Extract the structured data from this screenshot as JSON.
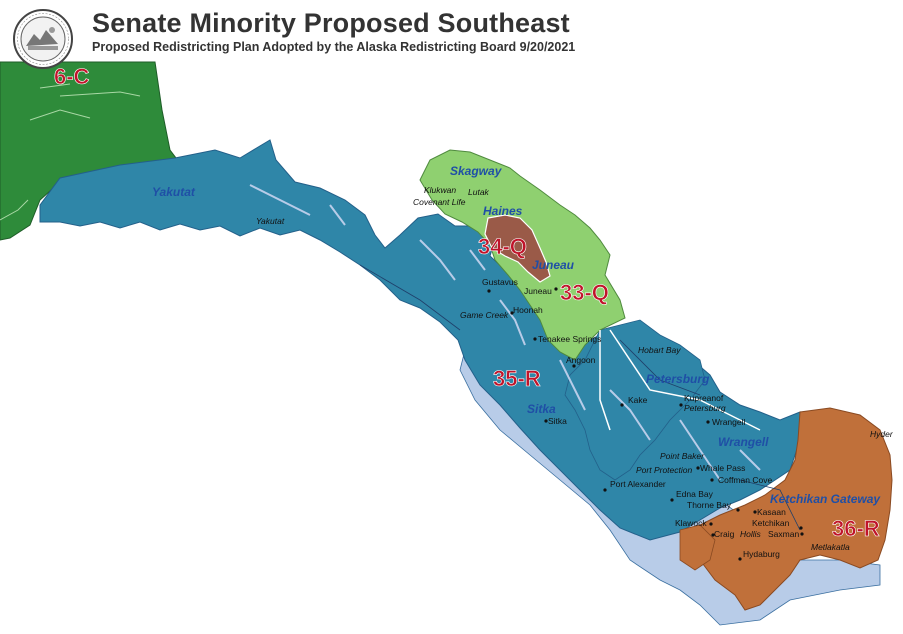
{
  "header": {
    "title": "Senate Minority Proposed Southeast",
    "subtitle": "Proposed Redistricting Plan Adopted by the Alaska Redistricting Board 9/20/2021"
  },
  "colors": {
    "district_6C": "#2e8b3a",
    "district_35R": "#2f86a8",
    "district_33Q": "#8fd070",
    "district_34Q": "#9a5a48",
    "district_36R": "#c0703a",
    "water": "#b8cce8",
    "label_red": "#c0142a",
    "label_blue": "#1f4fa6"
  },
  "districts": {
    "d6C": "6-C",
    "d34Q": "34-Q",
    "d33Q": "33-Q",
    "d35R": "35-R",
    "d36R": "36-R"
  },
  "regions": {
    "yakutat": "Yakutat",
    "skagway": "Skagway",
    "haines": "Haines",
    "juneau": "Juneau",
    "petersburg": "Petersburg",
    "sitka": "Sitka",
    "wrangell": "Wrangell",
    "ketchikan_gateway": "Ketchikan Gateway"
  },
  "places": {
    "yakutat": "Yakutat",
    "klukwan": "Klukwan",
    "lutak": "Lutak",
    "covenant_life": "Covenant Life",
    "gustavus": "Gustavus",
    "juneau": "Juneau",
    "hoonah": "Hoonah",
    "game_creek": "Game Creek",
    "tenakee_springs": "Tenakee Springs",
    "angoon": "Angoon",
    "hobart_bay": "Hobart Bay",
    "kake": "Kake",
    "kupreanof": "Kupreanof",
    "petersburg": "Petersburg",
    "sitka": "Sitka",
    "wrangell": "Wrangell",
    "point_baker": "Point Baker",
    "port_protection": "Port Protection",
    "whale_pass": "Whale Pass",
    "coffman_cove": "Coffman Cove",
    "port_alexander": "Port Alexander",
    "edna_bay": "Edna Bay",
    "thorne_bay": "Thorne Bay",
    "kasaan": "Kasaan",
    "klawock": "Klawock",
    "ketchikan": "Ketchikan",
    "craig": "Craig",
    "hollis": "Hollis",
    "saxman": "Saxman",
    "hydaburg": "Hydaburg",
    "metlakatla": "Metlakatla",
    "hyder": "Hyder"
  }
}
